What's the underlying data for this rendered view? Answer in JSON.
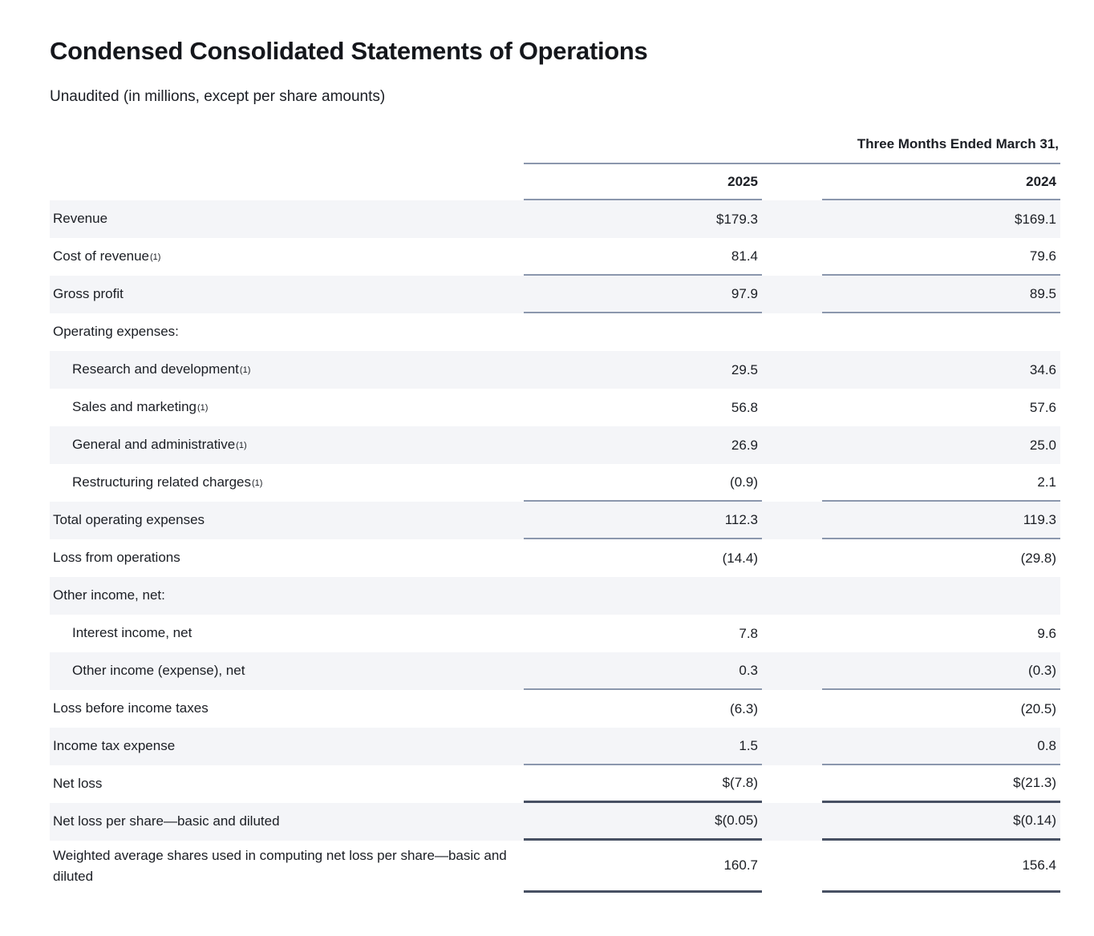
{
  "title": "Condensed Consolidated Statements of Operations",
  "subtitle": "Unaudited (in millions, except per share amounts)",
  "colors": {
    "text": "#1b1e24",
    "thin_rule": "#8b97ad",
    "thick_rule": "#475063",
    "row_shade": "#f4f5f8",
    "background": "#ffffff"
  },
  "table": {
    "period_header": "Three Months Ended March 31,",
    "columns": [
      "2025",
      "2024"
    ],
    "rows": [
      {
        "label": "Revenue",
        "footnote": "",
        "indent": 0,
        "values": [
          "$179.3",
          "$169.1"
        ],
        "shaded": true,
        "rule": "none"
      },
      {
        "label": "Cost of revenue",
        "footnote": "(1)",
        "indent": 0,
        "values": [
          "81.4",
          "79.6"
        ],
        "shaded": false,
        "rule": "thin"
      },
      {
        "label": "Gross profit",
        "footnote": "",
        "indent": 0,
        "values": [
          "97.9",
          "89.5"
        ],
        "shaded": true,
        "rule": "thin"
      },
      {
        "label": "Operating expenses:",
        "footnote": "",
        "indent": 0,
        "values": [
          "",
          ""
        ],
        "shaded": false,
        "rule": "none"
      },
      {
        "label": "Research and development",
        "footnote": "(1)",
        "indent": 1,
        "values": [
          "29.5",
          "34.6"
        ],
        "shaded": true,
        "rule": "none"
      },
      {
        "label": "Sales and marketing",
        "footnote": "(1)",
        "indent": 1,
        "values": [
          "56.8",
          "57.6"
        ],
        "shaded": false,
        "rule": "none"
      },
      {
        "label": "General and administrative",
        "footnote": "(1)",
        "indent": 1,
        "values": [
          "26.9",
          "25.0"
        ],
        "shaded": true,
        "rule": "none"
      },
      {
        "label": "Restructuring related charges",
        "footnote": "(1)",
        "indent": 1,
        "values": [
          "(0.9)",
          "2.1"
        ],
        "shaded": false,
        "rule": "thin"
      },
      {
        "label": "Total operating expenses",
        "footnote": "",
        "indent": 0,
        "values": [
          "112.3",
          "119.3"
        ],
        "shaded": true,
        "rule": "thin"
      },
      {
        "label": "Loss from operations",
        "footnote": "",
        "indent": 0,
        "values": [
          "(14.4)",
          "(29.8)"
        ],
        "shaded": false,
        "rule": "none"
      },
      {
        "label": "Other income, net:",
        "footnote": "",
        "indent": 0,
        "values": [
          "",
          ""
        ],
        "shaded": true,
        "rule": "none"
      },
      {
        "label": "Interest income, net",
        "footnote": "",
        "indent": 1,
        "values": [
          "7.8",
          "9.6"
        ],
        "shaded": false,
        "rule": "none"
      },
      {
        "label": "Other income (expense), net",
        "footnote": "",
        "indent": 1,
        "values": [
          "0.3",
          "(0.3)"
        ],
        "shaded": true,
        "rule": "thin"
      },
      {
        "label": "Loss before income taxes",
        "footnote": "",
        "indent": 0,
        "values": [
          "(6.3)",
          "(20.5)"
        ],
        "shaded": false,
        "rule": "none"
      },
      {
        "label": "Income tax expense",
        "footnote": "",
        "indent": 0,
        "values": [
          "1.5",
          "0.8"
        ],
        "shaded": true,
        "rule": "thin"
      },
      {
        "label": "Net loss",
        "footnote": "",
        "indent": 0,
        "values": [
          "$(7.8)",
          "$(21.3)"
        ],
        "shaded": false,
        "rule": "thick"
      },
      {
        "label": "Net loss per share—basic and diluted",
        "footnote": "",
        "indent": 0,
        "values": [
          "$(0.05)",
          "$(0.14)"
        ],
        "shaded": true,
        "rule": "thick"
      },
      {
        "label": "Weighted average shares used in computing net loss per share—basic and diluted",
        "footnote": "",
        "indent": 0,
        "values": [
          "160.7",
          "156.4"
        ],
        "shaded": false,
        "rule": "thick"
      }
    ]
  }
}
